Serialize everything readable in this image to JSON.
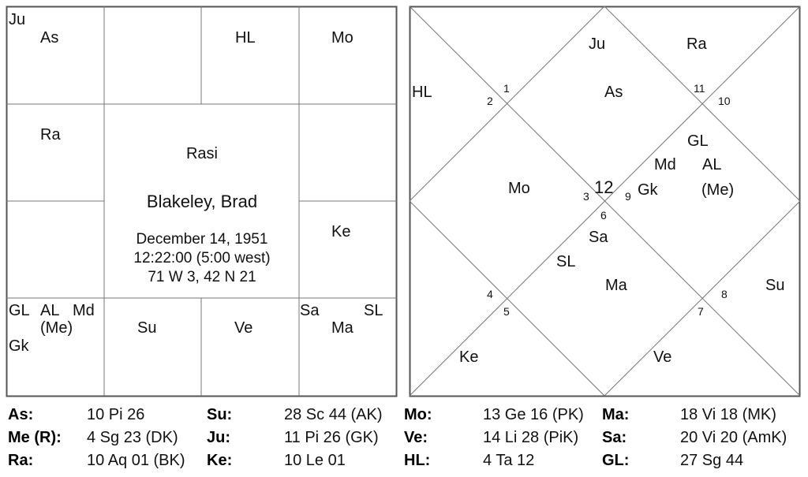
{
  "rasi_chart": {
    "title": "Rasi",
    "name": "Blakeley, Brad",
    "date": "December 14, 1951",
    "time": "12:22:00 (5:00 west)",
    "location": "71 W 3, 42 N 21",
    "cells": {
      "pisces": [
        "Ju",
        "As"
      ],
      "taurus": [
        "HL"
      ],
      "gemini": [
        "Mo"
      ],
      "aquarius": [
        "Ra"
      ],
      "leo": [
        "Ke"
      ],
      "sagittarius": [
        "GL",
        "AL",
        "Md",
        "(Me)",
        "Gk"
      ],
      "scorpio": [
        "Su"
      ],
      "libra": [
        "Ve"
      ],
      "virgo": [
        "Sa",
        "SL",
        "Ma"
      ]
    }
  },
  "north_chart": {
    "houses": [
      "1",
      "2",
      "3",
      "4",
      "5",
      "6",
      "7",
      "8",
      "9",
      "10",
      "11",
      "12"
    ],
    "labels": {
      "ju": "Ju",
      "ra": "Ra",
      "hl": "HL",
      "as": "As",
      "gl": "GL",
      "md": "Md",
      "al": "AL",
      "me": "(Me)",
      "mo": "Mo",
      "gk": "Gk",
      "sa": "Sa",
      "sl": "SL",
      "ma": "Ma",
      "su": "Su",
      "ke": "Ke",
      "ve": "Ve"
    }
  },
  "positions": [
    [
      {
        "k": "As:",
        "v": "10 Pi 26"
      },
      {
        "k": "Su:",
        "v": "28 Sc 44 (AK)"
      },
      {
        "k": "Mo:",
        "v": "13 Ge 16 (PK)"
      },
      {
        "k": "Ma:",
        "v": "18 Vi 18 (MK)"
      }
    ],
    [
      {
        "k": "Me (R):",
        "v": "4 Sg 23 (DK)"
      },
      {
        "k": "Ju:",
        "v": "11 Pi 26 (GK)"
      },
      {
        "k": "Ve:",
        "v": "14 Li 28 (PiK)"
      },
      {
        "k": "Sa:",
        "v": "20 Vi 20 (AmK)"
      }
    ],
    [
      {
        "k": "Ra:",
        "v": "10 Aq 01 (BK)"
      },
      {
        "k": "Ke:",
        "v": "10 Le 01"
      },
      {
        "k": "HL:",
        "v": "4 Ta 12"
      },
      {
        "k": "GL:",
        "v": "27 Sg 44"
      }
    ]
  ]
}
